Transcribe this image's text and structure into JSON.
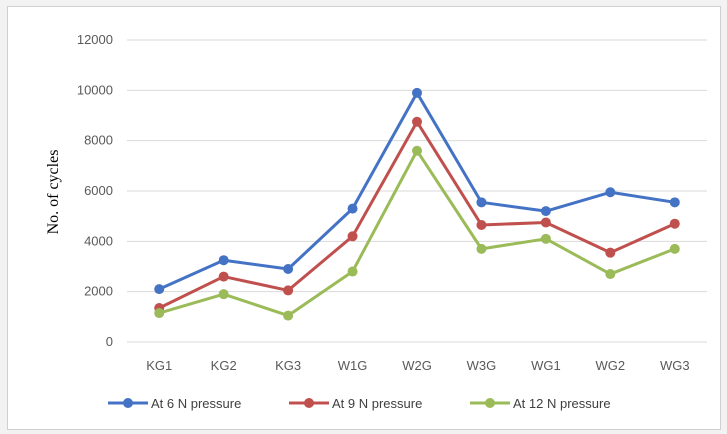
{
  "chart_data": {
    "type": "line",
    "title": "",
    "xlabel": "",
    "ylabel": "No. of cycles",
    "categories": [
      "KG1",
      "KG2",
      "KG3",
      "W1G",
      "W2G",
      "W3G",
      "WG1",
      "WG2",
      "WG3"
    ],
    "ylim": [
      0,
      12000
    ],
    "yticks": [
      0,
      2000,
      4000,
      6000,
      8000,
      10000,
      12000
    ],
    "grid": true,
    "legend_position": "bottom",
    "series": [
      {
        "name": "At 6 N pressure",
        "color": "#4472c4",
        "values": [
          2100,
          3250,
          2900,
          5300,
          9900,
          5550,
          5200,
          5950,
          5550
        ]
      },
      {
        "name": "At 9 N pressure",
        "color": "#c0504d",
        "values": [
          1350,
          2600,
          2050,
          4200,
          8750,
          4650,
          4750,
          3550,
          4700
        ]
      },
      {
        "name": "At 12 N pressure",
        "color": "#9bbb59",
        "values": [
          1150,
          1900,
          1050,
          2800,
          7600,
          3700,
          4100,
          2700,
          3700
        ]
      }
    ]
  }
}
